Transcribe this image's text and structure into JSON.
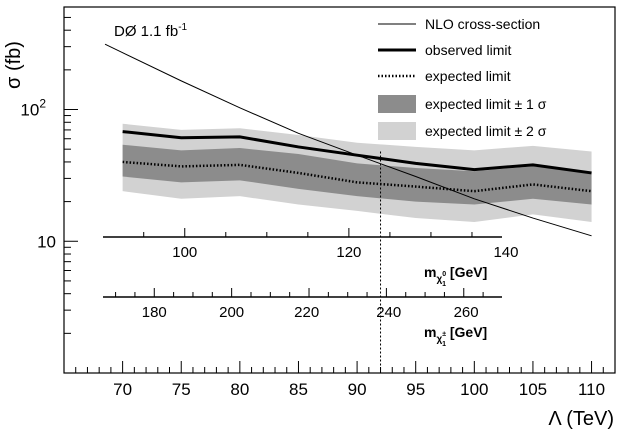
{
  "chart_data": {
    "type": "line",
    "annotation": "DØ 1.1 fb",
    "annotation_sup": "-1",
    "x": [
      70,
      75,
      80,
      85,
      90,
      95,
      100,
      105,
      110
    ],
    "xlim": [
      65,
      112
    ],
    "ylim": [
      1,
      600
    ],
    "y_log": true,
    "ylabel": "σ (fb)",
    "xlabel": "Λ (TeV)",
    "x_ticks": [
      "70",
      "75",
      "80",
      "85",
      "90",
      "95",
      "100",
      "105",
      "110"
    ],
    "y_ticks": [
      {
        "label": "10",
        "value": 10
      },
      {
        "label": "10",
        "sup": "2",
        "value": 100
      }
    ],
    "series": [
      {
        "name": "NLO cross-section",
        "style": "thin",
        "values": [
          270,
          165,
          103,
          66,
          45,
          31,
          21,
          15,
          11
        ]
      },
      {
        "name": "observed limit",
        "style": "thick",
        "values": [
          68,
          61,
          62,
          52,
          45,
          39,
          35,
          38,
          33
        ]
      },
      {
        "name": "expected limit",
        "style": "dotted",
        "values": [
          40,
          37,
          38,
          33,
          28,
          26,
          24,
          27,
          24
        ]
      }
    ],
    "bands": [
      {
        "name": "expected limit ± 1 σ",
        "color": "#8c8c8c",
        "lower": [
          31,
          28,
          29,
          25,
          22,
          20,
          19,
          21,
          19
        ],
        "upper": [
          54,
          49,
          51,
          46,
          39,
          36,
          34,
          37,
          33
        ]
      },
      {
        "name": "expected limit ± 2 σ",
        "color": "#d2d2d2",
        "lower": [
          24,
          21,
          22,
          19,
          17,
          15,
          14,
          16,
          14
        ],
        "upper": [
          78,
          70,
          72,
          64,
          56,
          52,
          49,
          53,
          48
        ]
      }
    ],
    "reference_x": 92,
    "secondary_axes": [
      {
        "label": "m",
        "sub": "χ",
        "subsup": "0",
        "subsub": "1",
        "unit": " [GeV]",
        "ticks": [
          {
            "label": "100",
            "lambda": 75.3
          },
          {
            "label": "120",
            "lambda": 89.3
          },
          {
            "label": "140",
            "lambda": 102.7
          }
        ]
      },
      {
        "label": "m",
        "sub": "χ",
        "subsup": "±",
        "subsub": "1",
        "unit": " [GeV]",
        "ticks": [
          {
            "label": "180",
            "lambda": 72.7
          },
          {
            "label": "200",
            "lambda": 79.3
          },
          {
            "label": "220",
            "lambda": 85.7
          },
          {
            "label": "240",
            "lambda": 92.7
          },
          {
            "label": "260",
            "lambda": 99.3
          }
        ]
      }
    ],
    "legend_position": "top-right",
    "colors": {
      "band1": "#8c8c8c",
      "band2": "#d2d2d2",
      "line": "#000000"
    }
  }
}
